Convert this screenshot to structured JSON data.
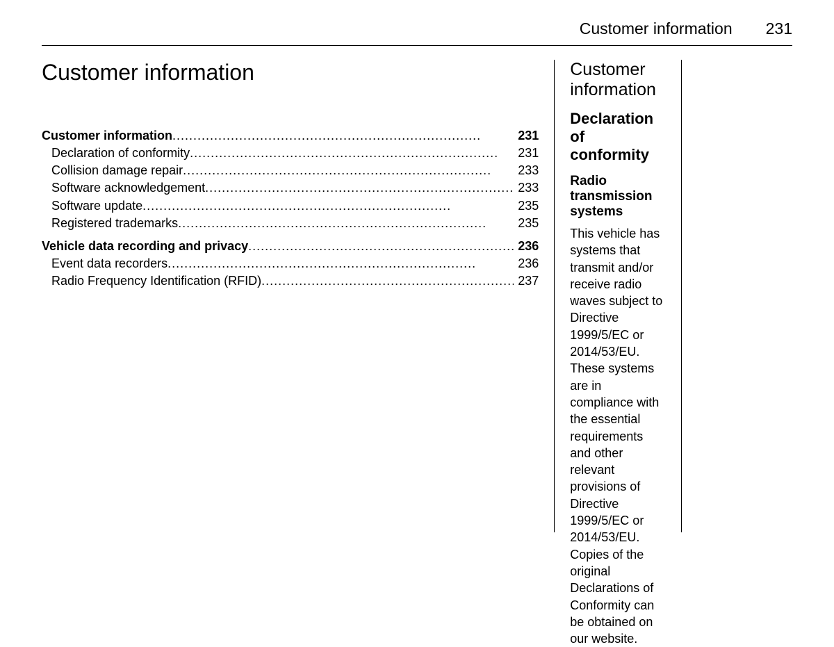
{
  "colors": {
    "background": "#ffffff",
    "text": "#000000",
    "rule": "#000000"
  },
  "typography": {
    "body_fontsize_pt": 13,
    "chapter_title_fontsize_pt": 24,
    "section_heading_fontsize_pt": 19,
    "sub_heading_fontsize_pt": 16,
    "subsub_heading_fontsize_pt": 14,
    "font_family": "Arial, Helvetica, sans-serif"
  },
  "header": {
    "section_title": "Customer information",
    "page_number": "231"
  },
  "column1": {
    "chapter_title": "Customer information",
    "toc": {
      "items": [
        {
          "label": "Customer information",
          "page": "231",
          "level": 0,
          "bold": true
        },
        {
          "label": "Declaration of conformity",
          "page": "231",
          "level": 1,
          "bold": false
        },
        {
          "label": "Collision damage repair",
          "page": "233",
          "level": 1,
          "bold": false
        },
        {
          "label": "Software acknowledgement",
          "page": "233",
          "level": 1,
          "bold": false
        },
        {
          "label": "Software update",
          "page": "235",
          "level": 1,
          "bold": false
        },
        {
          "label": "Registered trademarks",
          "page": "235",
          "level": 1,
          "bold": false
        },
        {
          "label": "Vehicle data recording and privacy",
          "page": "236",
          "level": 0,
          "bold": true,
          "wrap": true
        },
        {
          "label": "Event data recorders",
          "page": "236",
          "level": 1,
          "bold": false
        },
        {
          "label": "Radio Frequency Identification (RFID)",
          "page": "237",
          "level": 1,
          "bold": false,
          "wrap": true
        }
      ]
    }
  },
  "column2": {
    "section_heading": "Customer information",
    "sub_heading": "Declaration of conformity",
    "subsub_heading": "Radio transmission systems",
    "body": "This vehicle has systems that transmit and/or receive radio waves subject to Directive 1999/5/EC or 2014/53/EU. These systems are in compliance with the essential requirements and other relevant provisions of Directive 1999/5/EC or 2014/53/EU. Copies of the original Declarations of Conformity can be obtained on our website."
  }
}
